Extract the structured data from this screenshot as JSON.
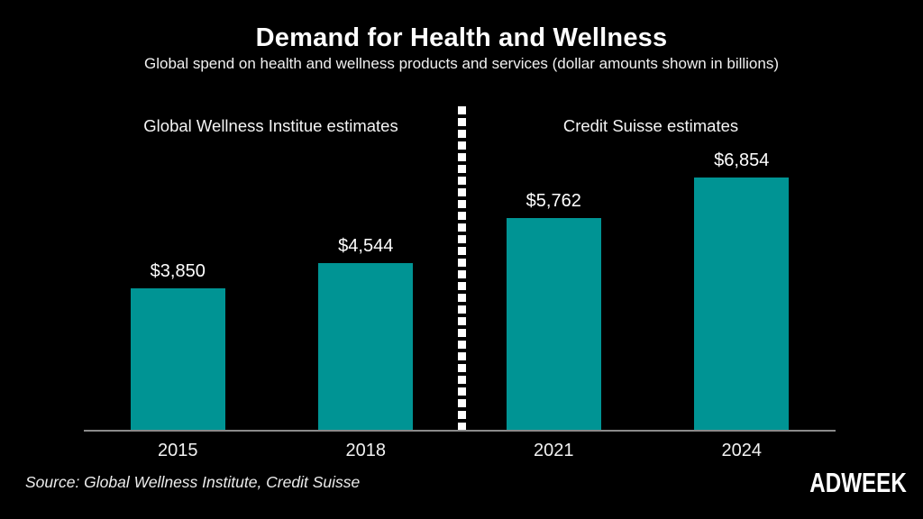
{
  "header": {
    "title": "Demand for Health and Wellness",
    "subtitle": "Global spend on health and wellness products and services (dollar amounts shown in billions)"
  },
  "sections": {
    "left_label": "Global Wellness Institue estimates",
    "right_label": "Credit Suisse estimates"
  },
  "chart_data": {
    "type": "bar",
    "title": "Demand for Health and Wellness",
    "subtitle": "Global spend on health and wellness products and services (dollar amounts shown in billions)",
    "categories": [
      "2015",
      "2018",
      "2021",
      "2024"
    ],
    "values": [
      3850,
      4544,
      5762,
      6854
    ],
    "value_labels": [
      "$3,850",
      "$4,544",
      "$5,762",
      "$6,854"
    ],
    "xlabel": "",
    "ylabel": "",
    "ylim": [
      0,
      6900
    ],
    "grid": false,
    "legend": false,
    "units": "billions USD",
    "group_annotations": [
      {
        "label": "Global Wellness Institue estimates",
        "categories": [
          "2015",
          "2018"
        ]
      },
      {
        "label": "Credit Suisse estimates",
        "categories": [
          "2021",
          "2024"
        ]
      }
    ]
  },
  "footer": {
    "source": "Source: Global Wellness Institute, Credit Suisse",
    "brand": "ADWEEK"
  },
  "colors": {
    "background": "#000000",
    "bar": "#009494",
    "text": "#ffffff",
    "axis_line": "#8a8a8a",
    "divider": "#ffffff"
  }
}
